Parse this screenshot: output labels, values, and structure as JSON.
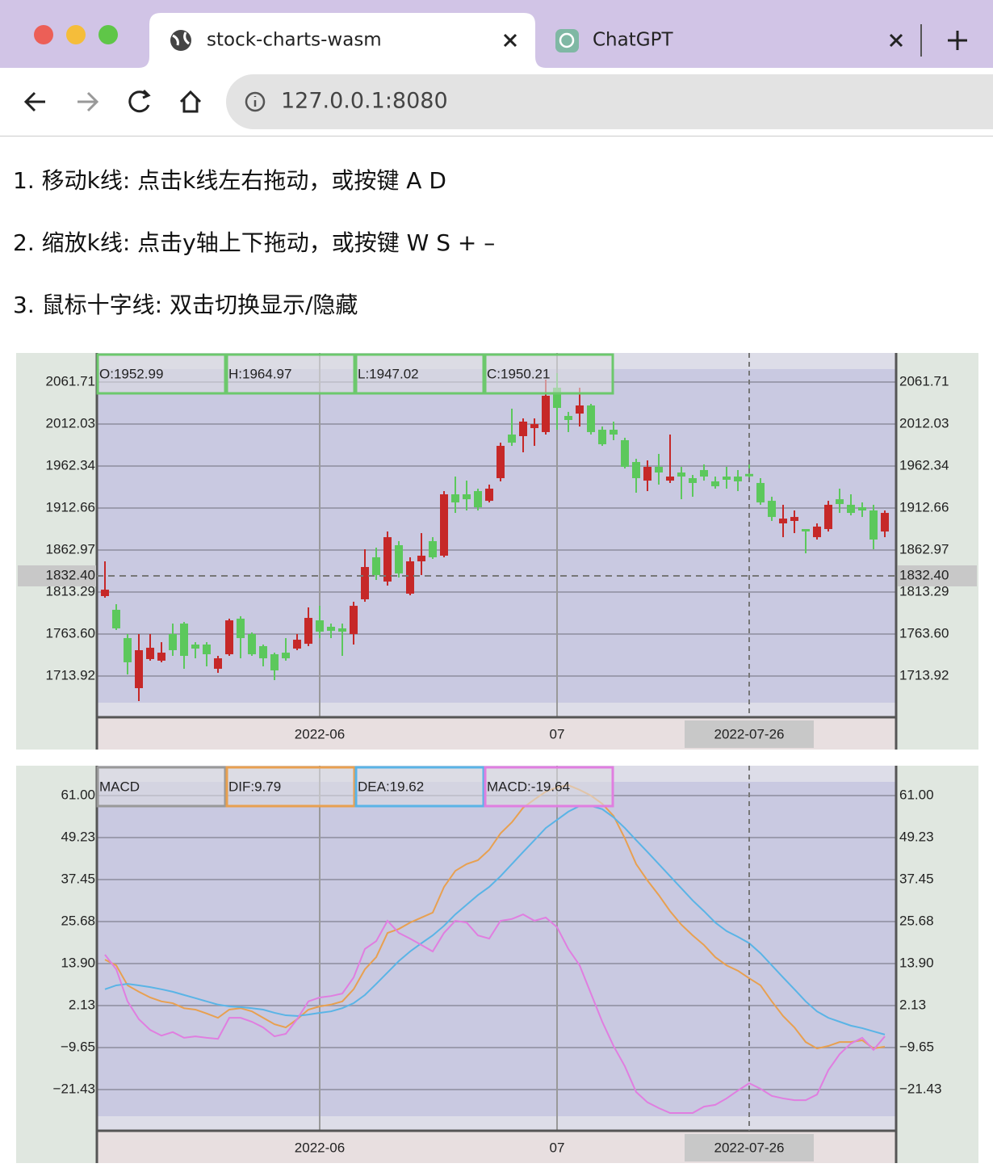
{
  "browser": {
    "tabs": [
      "stock-charts-wasm",
      "ChatGPT"
    ],
    "address": "127.0.0.1:8080"
  },
  "instructions": [
    "1. 移动k线: 点击k线左右拖动，或按键 A D",
    "2. 缩放k线: 点击y轴上下拖动，或按键 W S + –",
    "3. 鼠标十字线: 双击切换显示/隐藏"
  ],
  "chart_data": [
    {
      "type": "candlestick",
      "up_color": "#c62828",
      "down_color": "#5cc85c",
      "legend_color": "#6cc86c",
      "legend": [
        "O:1952.99",
        "H:1964.97",
        "L:1947.02",
        "C:1950.21"
      ],
      "categories": [
        null,
        null,
        null,
        null,
        null,
        null,
        null,
        null,
        null,
        null,
        null,
        null,
        null,
        null,
        null,
        null,
        null,
        null,
        null,
        "2022-06",
        null,
        null,
        null,
        null,
        null,
        null,
        null,
        null,
        null,
        null,
        null,
        null,
        null,
        null,
        null,
        null,
        null,
        null,
        null,
        null,
        "07",
        null,
        null,
        null,
        null,
        null,
        null,
        null,
        null,
        null,
        null,
        null,
        null,
        null,
        null,
        null,
        null,
        null,
        null,
        null,
        null,
        null,
        null,
        null,
        null,
        null,
        null,
        null,
        null,
        null
      ],
      "open": [
        1808.5,
        1792.3,
        1758.8,
        1699.6,
        1734.0,
        1732.1,
        1763.6,
        1776.0,
        1751.2,
        1751.2,
        1722.5,
        1739.7,
        1781.8,
        1763.6,
        1749.3,
        1739.7,
        1741.6,
        1746.4,
        1752.1,
        1779.8,
        1772.2,
        1770.3,
        1763.6,
        1804.7,
        1854.4,
        1825.7,
        1868.7,
        1811.4,
        1849.6,
        1873.5,
        1856.3,
        1928.9,
        1928.9,
        1932.7,
        1921.2,
        1948.0,
        1999.6,
        1997.7,
        2007.2,
        2002.5,
        2055.0,
        2021.6,
        2024.4,
        2034.0,
        2005.3,
        2005.3,
        1992.9,
        1967.1,
        1945.1,
        1961.4,
        1945.1,
        1954.7,
        1948.0,
        1957.6,
        1944.2,
        1949.9,
        1949.9,
        1952.99,
        1942.3,
        1921.2,
        1894.5,
        1897.4,
        1887.8,
        1878.2,
        1887.8,
        1923.1,
        1916.5,
        1913.6,
        1909.8,
        1884.9
      ],
      "high": [
        1849.6,
        1798.9,
        1763.6,
        1763.6,
        1763.6,
        1754.0,
        1776.0,
        1777.9,
        1754.0,
        1754.0,
        1737.8,
        1781.8,
        1784.7,
        1765.5,
        1751.2,
        1741.6,
        1758.8,
        1763.6,
        1795.1,
        1797.0,
        1776.0,
        1776.0,
        1801.8,
        1863.9,
        1865.8,
        1884.9,
        1873.5,
        1854.4,
        1883.0,
        1878.2,
        1932.7,
        1949.9,
        1945.1,
        1935.6,
        1940.4,
        1990.0,
        2030.2,
        2018.7,
        2018.7,
        2064.6,
        2072.2,
        2026.4,
        2055.0,
        2035.9,
        2009.1,
        2014.9,
        1995.8,
        1970.9,
        1969.0,
        1976.7,
        1999.6,
        1961.4,
        1951.8,
        1964.3,
        1949.9,
        1961.4,
        1957.6,
        1964.97,
        1948.0,
        1926.0,
        1916.5,
        1909.8,
        1887.8,
        1894.5,
        1921.2,
        1935.6,
        1928.9,
        1919.3,
        1916.5,
        1909.8
      ],
      "low": [
        1806.6,
        1768.4,
        1715.8,
        1684.3,
        1732.1,
        1730.2,
        1737.8,
        1722.5,
        1734.9,
        1725.4,
        1717.7,
        1737.8,
        1734.9,
        1737.8,
        1725.4,
        1709.1,
        1732.1,
        1744.5,
        1749.3,
        1758.8,
        1758.8,
        1737.8,
        1751.2,
        1801.8,
        1827.6,
        1820.9,
        1830.5,
        1809.5,
        1833.4,
        1852.5,
        1854.4,
        1906.9,
        1909.8,
        1909.8,
        1919.3,
        1944.2,
        1986.2,
        1978.6,
        1986.2,
        1999.6,
        2005.3,
        2002.5,
        2009.1,
        1999.6,
        1986.2,
        1992.9,
        1959.5,
        1930.8,
        1932.7,
        1940.4,
        1942.3,
        1923.1,
        1926.0,
        1945.1,
        1935.6,
        1935.6,
        1932.7,
        1947.02,
        1916.5,
        1897.4,
        1878.2,
        1883.0,
        1859.1,
        1875.4,
        1884.9,
        1906.9,
        1904.0,
        1902.1,
        1863.9,
        1878.2
      ],
      "close": [
        1816.1,
        1770.3,
        1730.2,
        1744.5,
        1747.4,
        1741.6,
        1744.5,
        1737.8,
        1746.4,
        1739.7,
        1734.9,
        1779.8,
        1758.8,
        1739.7,
        1734.9,
        1720.6,
        1734.9,
        1756.9,
        1782.7,
        1766.4,
        1767.4,
        1766.4,
        1797.0,
        1842.9,
        1833.4,
        1878.2,
        1835.3,
        1849.6,
        1856.3,
        1854.4,
        1928.9,
        1919.3,
        1923.1,
        1913.6,
        1935.6,
        1986.2,
        1990.0,
        2014.9,
        2012.0,
        2045.5,
        2031.1,
        2016.8,
        2034.0,
        2002.5,
        1988.1,
        1999.6,
        1961.4,
        1948.0,
        1961.4,
        1954.7,
        1949.9,
        1949.9,
        1942.3,
        1949.9,
        1938.4,
        1946.1,
        1944.2,
        1950.21,
        1919.3,
        1902.1,
        1900.2,
        1902.1,
        1885.0,
        1890.7,
        1916.5,
        1917.4,
        1906.9,
        1909.8,
        1875.4,
        1906.9
      ],
      "ylim": [
        1665.2,
        2096.1
      ],
      "yticks": [
        2061.71,
        2012.03,
        1962.34,
        1912.66,
        1862.97,
        1813.29,
        {
          "value": 1763.6,
          "label": "1763.60"
        },
        1713.92
      ],
      "grid": true,
      "crosshair": {
        "x_index": 57,
        "x_label": "2022-07-26",
        "y": 1832.4,
        "y_label": "1832.40"
      }
    },
    {
      "type": "line",
      "indicator": "MACD",
      "categories": [
        null,
        null,
        null,
        null,
        null,
        null,
        null,
        null,
        null,
        null,
        null,
        null,
        null,
        null,
        null,
        null,
        null,
        null,
        null,
        "2022-06",
        null,
        null,
        null,
        null,
        null,
        null,
        null,
        null,
        null,
        null,
        null,
        null,
        null,
        null,
        null,
        null,
        null,
        null,
        null,
        null,
        "07",
        null,
        null,
        null,
        null,
        null,
        null,
        null,
        null,
        null,
        null,
        null,
        null,
        null,
        null,
        null,
        null,
        null,
        null,
        null,
        null,
        null,
        null,
        null,
        null,
        null,
        null,
        null,
        null,
        null
      ],
      "series": [
        {
          "legend": "DIF:9.79",
          "color": "#e8a050",
          "values": [
            15.0,
            13.4,
            7.8,
            6.0,
            4.4,
            3.3,
            2.8,
            1.4,
            1.0,
            -0.1,
            -1.3,
            1.0,
            1.4,
            0.5,
            -1.3,
            -3.1,
            -4.0,
            -1.7,
            1.0,
            1.9,
            2.4,
            3.3,
            6.7,
            12.3,
            15.7,
            22.5,
            23.6,
            25.4,
            26.8,
            28.2,
            35.4,
            39.9,
            41.8,
            42.9,
            45.8,
            50.4,
            53.5,
            57.6,
            59.9,
            62.1,
            63.3,
            63.9,
            62.6,
            61.0,
            58.7,
            55.3,
            49.0,
            41.8,
            37.2,
            33.1,
            28.6,
            24.8,
            21.8,
            19.1,
            15.7,
            13.4,
            11.9,
            9.79,
            7.8,
            3.3,
            -0.8,
            -4.0,
            -8.1,
            -9.9,
            -9.2,
            -8.1,
            -8.1,
            -7.6,
            -9.9,
            -9.4
          ]
        },
        {
          "legend": "DEA:19.62",
          "color": "#5ab4e6",
          "values": [
            6.7,
            7.8,
            8.2,
            7.8,
            7.3,
            6.7,
            6.0,
            5.1,
            4.2,
            3.3,
            2.4,
            1.9,
            1.7,
            1.4,
            1.0,
            0.1,
            -0.6,
            -0.8,
            -0.4,
            0.1,
            0.5,
            1.4,
            2.8,
            5.1,
            8.2,
            11.4,
            14.6,
            17.3,
            19.6,
            21.8,
            24.5,
            27.7,
            30.4,
            33.1,
            35.4,
            38.4,
            41.8,
            45.2,
            48.5,
            51.9,
            54.2,
            56.5,
            58.1,
            58.1,
            57.2,
            54.9,
            51.9,
            48.5,
            45.2,
            41.8,
            38.4,
            35.0,
            31.6,
            28.6,
            25.4,
            23.0,
            21.4,
            19.62,
            16.8,
            13.4,
            10.0,
            6.7,
            3.3,
            0.5,
            -1.3,
            -2.4,
            -3.5,
            -4.2,
            -5.1,
            -6.0
          ]
        },
        {
          "legend": "MACD:-19.64",
          "color": "#e07ee0",
          "values": [
            16.4,
            12.3,
            3.3,
            -1.7,
            -4.7,
            -6.3,
            -5.3,
            -6.9,
            -6.5,
            -6.9,
            -7.2,
            -1.3,
            -1.3,
            -2.4,
            -4.0,
            -6.5,
            -5.8,
            -1.7,
            3.3,
            4.4,
            4.8,
            5.5,
            10.0,
            18.0,
            20.2,
            25.9,
            22.5,
            20.9,
            19.1,
            17.3,
            22.5,
            25.9,
            25.4,
            21.8,
            20.9,
            25.9,
            26.4,
            27.7,
            25.9,
            26.8,
            24.1,
            18.0,
            13.4,
            5.5,
            -2.4,
            -9.2,
            -14.9,
            -22.1,
            -25.0,
            -26.6,
            -28.0,
            -28.0,
            -28.0,
            -26.2,
            -25.7,
            -23.9,
            -21.7,
            -19.64,
            -21.2,
            -23.2,
            -23.9,
            -24.4,
            -24.4,
            -22.8,
            -16.0,
            -11.5,
            -8.5,
            -6.9,
            -10.3,
            -6.5
          ]
        }
      ],
      "ylim": [
        -32.97,
        69.38
      ],
      "yticks": [
        {
          "value": 61,
          "label": "61.00"
        },
        49.23,
        37.45,
        25.68,
        {
          "value": 13.9,
          "label": "13.90"
        },
        2.13,
        {
          "value": -9.65,
          "label": "−9.65"
        },
        {
          "value": -21.43,
          "label": "−21.43"
        }
      ],
      "grid": true,
      "crosshair": {
        "x_index": 57,
        "x_label": "2022-07-26"
      }
    }
  ]
}
